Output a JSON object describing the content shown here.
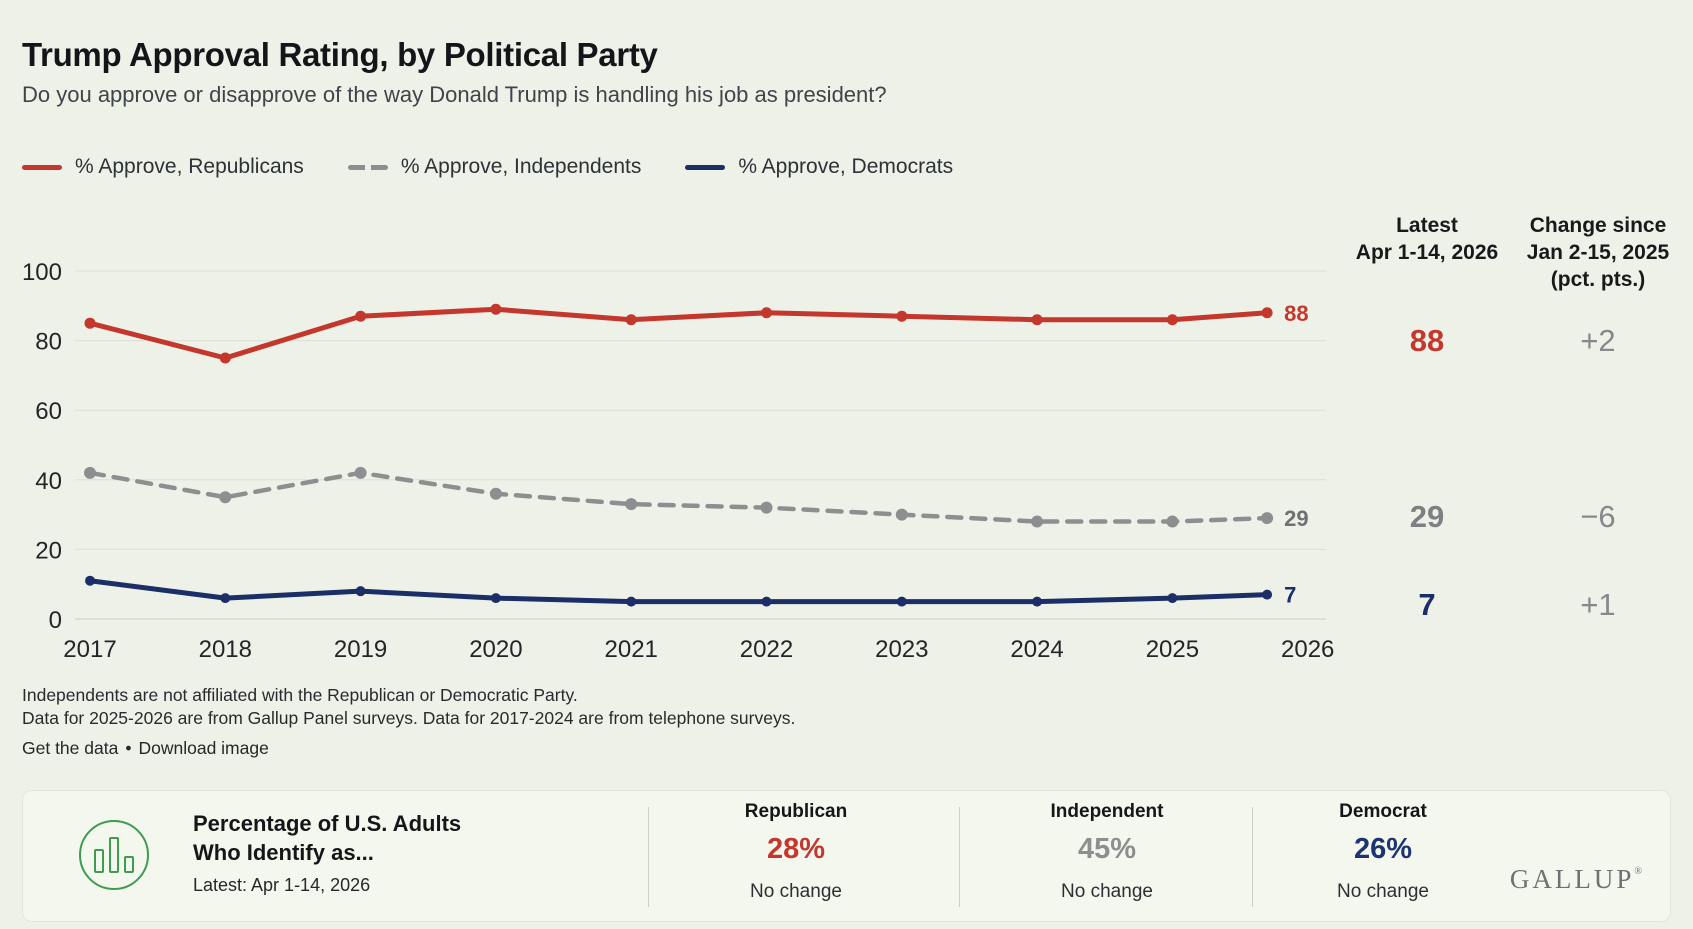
{
  "colors": {
    "background": "#eef1e8",
    "panel_background": "#f4f7ed",
    "grid": "#dadfd4",
    "axis_zero_line": "#c9cdc2",
    "republican_red": "#c4372d",
    "independent_gray": "#8c8f90",
    "democrat_navy": "#1b2e67",
    "change_gray": "#85898b",
    "icon_green": "#3f9b4f"
  },
  "chart_data": {
    "type": "line",
    "title": "Trump Approval Rating, by Political Party",
    "subtitle": "Do you approve or disapprove of the way Donald Trump is handling his job as president?",
    "grid": "horizontal",
    "legend_position": "top",
    "ylim": [
      0,
      100
    ],
    "yticks": [
      0,
      20,
      40,
      60,
      80,
      100
    ],
    "x_tick_labels": [
      "2017",
      "2018",
      "2019",
      "2020",
      "2021",
      "2022",
      "2023",
      "2024",
      "2025",
      "2026"
    ],
    "x_index": [
      0,
      1,
      2,
      3,
      4,
      5,
      6,
      7,
      8,
      8.7
    ],
    "point_labels": [
      "2017",
      "2018",
      "2019",
      "2020",
      "2021",
      "2022",
      "2023",
      "2024",
      "2025",
      "Apr 1-14, 2026"
    ],
    "series": [
      {
        "id": "republicans",
        "name": "% Approve, Republicans",
        "color": "#c4372d",
        "dashed": false,
        "width": 5,
        "dot_r": 5.5,
        "values": [
          85,
          75,
          87,
          89,
          86,
          88,
          87,
          86,
          86,
          88
        ],
        "end_label": "88",
        "end_label_color": "#c4372d"
      },
      {
        "id": "independents",
        "name": "% Approve, Independents",
        "color": "#8c8f90",
        "dashed": true,
        "width": 4.5,
        "dot_r": 6,
        "values": [
          42,
          35,
          42,
          36,
          33,
          32,
          30,
          28,
          28,
          29
        ],
        "end_label": "29",
        "end_label_color": "#6e7174"
      },
      {
        "id": "democrats",
        "name": "% Approve, Democrats",
        "color": "#1b2e67",
        "dashed": false,
        "width": 5,
        "dot_r": 5,
        "values": [
          11,
          6,
          8,
          6,
          5,
          5,
          5,
          5,
          6,
          7
        ],
        "end_label": "7",
        "end_label_color": "#1b2e67"
      }
    ]
  },
  "stats": {
    "latest": {
      "header": [
        "Latest",
        "Apr 1-14, 2026"
      ],
      "values": [
        {
          "text": "88",
          "color": "#c4372d"
        },
        {
          "text": "29",
          "color": "#7d8082"
        },
        {
          "text": "7",
          "color": "#1b2e67"
        }
      ]
    },
    "change": {
      "header": [
        "Change since",
        "Jan 2-15, 2025",
        "(pct. pts.)"
      ],
      "values": [
        {
          "text": "+2",
          "color": "#85898b"
        },
        {
          "text": "−6",
          "color": "#85898b"
        },
        {
          "text": "+1",
          "color": "#85898b"
        }
      ]
    }
  },
  "footnotes": {
    "line1": "Independents are not affiliated with the Republican or Democratic Party.",
    "line2": "Data for 2025-2026 are from Gallup Panel surveys. Data for 2017-2024 are from telephone surveys."
  },
  "links": {
    "get_data": "Get the data",
    "separator": "•",
    "download": "Download image"
  },
  "party_id_panel": {
    "icon": "bar-chart-icon",
    "title_line1": "Percentage of U.S. Adults",
    "title_line2": "Who Identify as...",
    "latest": "Latest: Apr 1-14, 2026",
    "columns": [
      {
        "label": "Republican",
        "value": "28%",
        "change": "No change",
        "color": "#c4372d"
      },
      {
        "label": "Independent",
        "value": "45%",
        "change": "No change",
        "color": "#8c8f90"
      },
      {
        "label": "Democrat",
        "value": "26%",
        "change": "No change",
        "color": "#1c3472"
      }
    ],
    "logo": "GALLUP",
    "logo_mark": "®"
  }
}
